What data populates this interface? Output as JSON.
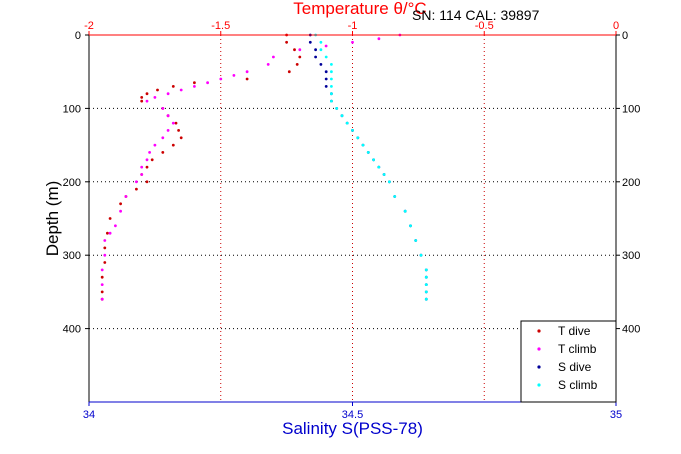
{
  "chart_data": {
    "type": "scatter",
    "top_axis": {
      "label": "Temperature θ/°C",
      "color": "#ff0000",
      "lim": [
        -2,
        0
      ],
      "ticks": [
        -2,
        -1.5,
        -1,
        -0.5,
        0
      ],
      "tick_labels": [
        "-2",
        "-1.5",
        "-1",
        "-0.5",
        "0"
      ]
    },
    "bottom_axis": {
      "label": "Salinity S(PSS-78)",
      "color": "#0000cc",
      "lim": [
        34,
        35
      ],
      "ticks": [
        34,
        34.5,
        35
      ],
      "tick_labels": [
        "34",
        "34.5",
        "35"
      ]
    },
    "y_axis": {
      "label": "Depth (m)",
      "lim": [
        0,
        500
      ],
      "reversed": true,
      "ticks": [
        0,
        100,
        200,
        300,
        400
      ],
      "tick_labels": [
        "0",
        "100",
        "200",
        "300",
        "400"
      ]
    },
    "grid": true,
    "annotation": "SN: 114  CAL: 39897",
    "legend_position": "bottom-right",
    "series": [
      {
        "name": "T dive",
        "axis": "top",
        "color": "#cc0000",
        "depth": [
          0,
          10,
          20,
          30,
          40,
          50,
          60,
          65,
          70,
          75,
          80,
          85,
          90,
          100,
          110,
          120,
          130,
          140,
          150,
          160,
          170,
          180,
          190,
          200,
          210,
          220,
          230,
          250,
          270,
          290,
          310,
          330,
          350,
          360
        ],
        "value": [
          -1.25,
          -1.25,
          -1.22,
          -1.2,
          -1.21,
          -1.24,
          -1.4,
          -1.6,
          -1.68,
          -1.74,
          -1.78,
          -1.8,
          -1.8,
          -1.72,
          -1.7,
          -1.67,
          -1.66,
          -1.65,
          -1.68,
          -1.72,
          -1.76,
          -1.78,
          -1.8,
          -1.78,
          -1.82,
          -1.86,
          -1.88,
          -1.92,
          -1.93,
          -1.94,
          -1.94,
          -1.95,
          -1.95,
          -1.95
        ]
      },
      {
        "name": "T climb",
        "axis": "top",
        "color": "#ff00ff",
        "depth": [
          0,
          5,
          10,
          15,
          20,
          30,
          40,
          50,
          55,
          60,
          65,
          70,
          75,
          80,
          85,
          90,
          100,
          110,
          120,
          130,
          140,
          150,
          160,
          170,
          180,
          190,
          200,
          220,
          240,
          260,
          270,
          280,
          300,
          320,
          340,
          360
        ],
        "value": [
          -0.82,
          -0.9,
          -1.0,
          -1.1,
          -1.2,
          -1.3,
          -1.32,
          -1.4,
          -1.45,
          -1.5,
          -1.55,
          -1.6,
          -1.65,
          -1.7,
          -1.75,
          -1.78,
          -1.72,
          -1.7,
          -1.68,
          -1.7,
          -1.72,
          -1.75,
          -1.77,
          -1.78,
          -1.8,
          -1.8,
          -1.82,
          -1.86,
          -1.88,
          -1.9,
          -1.92,
          -1.94,
          -1.94,
          -1.95,
          -1.95,
          -1.95
        ]
      },
      {
        "name": "S dive",
        "axis": "bottom",
        "color": "#000099",
        "depth": [
          0,
          10,
          20,
          30,
          40,
          50,
          60,
          70,
          80,
          90,
          100,
          110,
          120,
          130,
          140,
          150,
          160,
          170,
          180,
          190,
          200,
          220,
          240,
          260,
          280,
          300,
          320,
          330,
          340,
          350,
          360
        ],
        "value": [
          34.42,
          34.42,
          34.43,
          34.43,
          34.44,
          34.45,
          34.45,
          34.45,
          34.46,
          34.46,
          34.47,
          34.48,
          34.49,
          34.5,
          34.51,
          34.52,
          34.53,
          34.54,
          34.55,
          34.56,
          34.57,
          34.58,
          34.6,
          34.61,
          34.62,
          34.63,
          34.64,
          34.64,
          34.64,
          34.64,
          34.64
        ]
      },
      {
        "name": "S climb",
        "axis": "bottom",
        "color": "#00ffff",
        "depth": [
          0,
          10,
          20,
          30,
          40,
          50,
          60,
          70,
          80,
          90,
          100,
          110,
          120,
          130,
          140,
          150,
          160,
          170,
          180,
          190,
          200,
          220,
          240,
          260,
          280,
          300,
          320,
          330,
          340,
          350,
          360
        ],
        "value": [
          34.43,
          34.44,
          34.44,
          34.45,
          34.46,
          34.46,
          34.46,
          34.46,
          34.46,
          34.46,
          34.47,
          34.48,
          34.49,
          34.5,
          34.51,
          34.52,
          34.53,
          34.54,
          34.55,
          34.56,
          34.57,
          34.58,
          34.6,
          34.61,
          34.62,
          34.63,
          34.64,
          34.64,
          34.64,
          34.64,
          34.64
        ]
      }
    ]
  }
}
